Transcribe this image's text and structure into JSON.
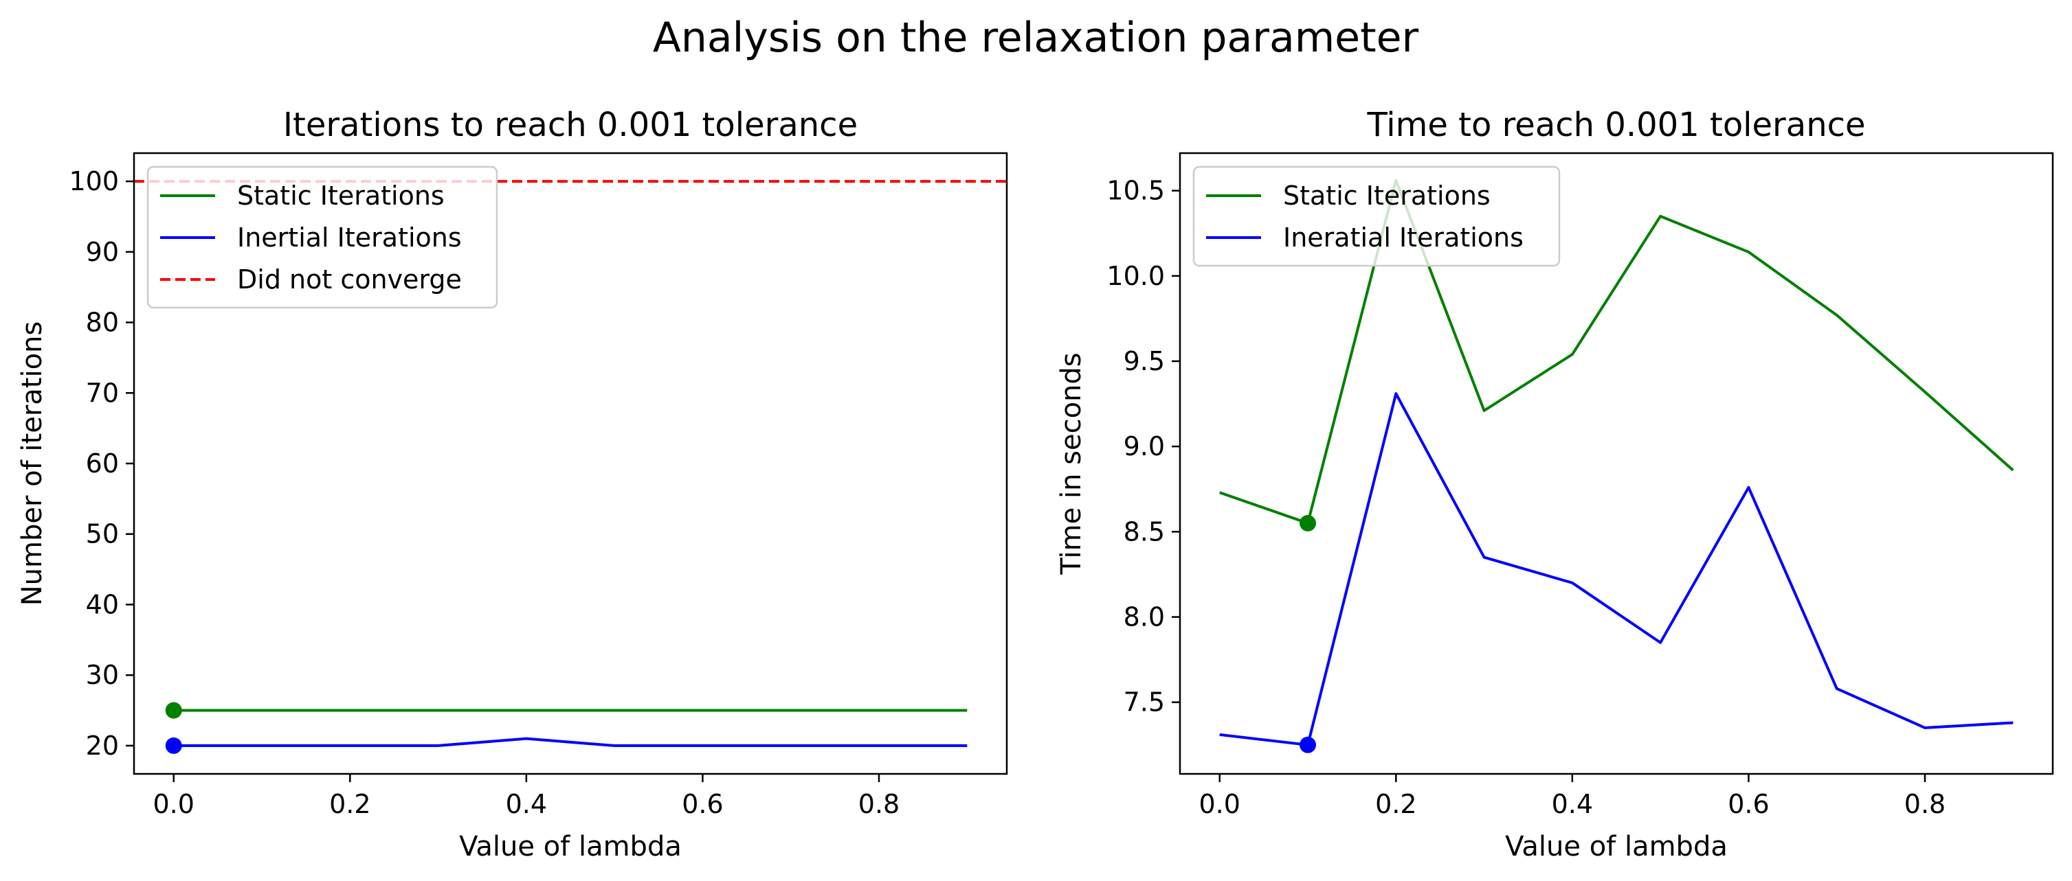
{
  "figure": {
    "suptitle": "Analysis on the relaxation parameter"
  },
  "colors": {
    "static": "#008000",
    "inertial": "#0000ff",
    "no_converge": "#ff0000"
  },
  "chart_data": [
    {
      "type": "line",
      "title": "Iterations to reach 0.001 tolerance",
      "xlabel": "Value of lambda",
      "ylabel": "Number of iterations",
      "xlim": [
        -0.045,
        0.945
      ],
      "ylim": [
        16,
        104
      ],
      "xticks": [
        0.0,
        0.2,
        0.4,
        0.6,
        0.8
      ],
      "xtick_labels": [
        "0.0",
        "0.2",
        "0.4",
        "0.6",
        "0.8"
      ],
      "yticks": [
        20,
        30,
        40,
        50,
        60,
        70,
        80,
        90,
        100
      ],
      "ytick_labels": [
        "20",
        "30",
        "40",
        "50",
        "60",
        "70",
        "80",
        "90",
        "100"
      ],
      "x": [
        0.0,
        0.1,
        0.2,
        0.3,
        0.4,
        0.5,
        0.6,
        0.7,
        0.8,
        0.9
      ],
      "series": [
        {
          "name": "Static Iterations",
          "values": [
            25,
            25,
            25,
            25,
            25,
            25,
            25,
            25,
            25,
            25
          ],
          "marker": {
            "x": 0.0,
            "y": 25
          }
        },
        {
          "name": "Inertial Iterations",
          "values": [
            20,
            20,
            20,
            20,
            21,
            20,
            20,
            20,
            20,
            20
          ],
          "marker": {
            "x": 0.0,
            "y": 20
          }
        }
      ],
      "hline": {
        "name": "Did not converge",
        "y": 100,
        "style": "dashed"
      },
      "legend": "upper left",
      "grid": false
    },
    {
      "type": "line",
      "title": "Time to reach 0.001 tolerance",
      "xlabel": "Value of lambda",
      "ylabel": "Time in seconds",
      "xlim": [
        -0.045,
        0.945
      ],
      "ylim": [
        7.08,
        10.72
      ],
      "xticks": [
        0.0,
        0.2,
        0.4,
        0.6,
        0.8
      ],
      "xtick_labels": [
        "0.0",
        "0.2",
        "0.4",
        "0.6",
        "0.8"
      ],
      "yticks": [
        7.5,
        8.0,
        8.5,
        9.0,
        9.5,
        10.0,
        10.5
      ],
      "ytick_labels": [
        "7.5",
        "8.0",
        "8.5",
        "9.0",
        "9.5",
        "10.0",
        "10.5"
      ],
      "x": [
        0.0,
        0.1,
        0.2,
        0.3,
        0.4,
        0.5,
        0.6,
        0.7,
        0.8,
        0.9
      ],
      "series": [
        {
          "name": "Static Iterations",
          "values": [
            8.73,
            8.55,
            10.56,
            9.21,
            9.54,
            10.35,
            10.14,
            9.77,
            9.32,
            8.86
          ],
          "marker": {
            "x": 0.1,
            "y": 8.55
          }
        },
        {
          "name": "Ineratial Iterations",
          "values": [
            7.31,
            7.25,
            9.31,
            8.35,
            8.2,
            7.85,
            8.76,
            7.58,
            7.35,
            7.38
          ],
          "marker": {
            "x": 0.1,
            "y": 7.25
          }
        }
      ],
      "legend": "upper left",
      "grid": false
    }
  ]
}
